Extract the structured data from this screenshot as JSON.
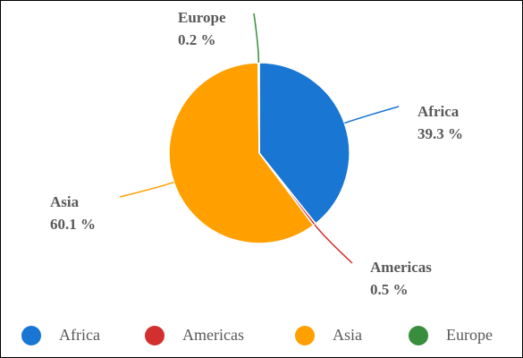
{
  "chart_data": {
    "type": "pie",
    "categories": [
      "Africa",
      "Americas",
      "Asia",
      "Europe"
    ],
    "values": [
      39.3,
      0.5,
      60.1,
      0.2
    ],
    "value_labels": [
      "39.3 %",
      "0.5 %",
      "60.1 %",
      "0.2 %"
    ],
    "colors": [
      "#1976d2",
      "#d32f2f",
      "#ffa000",
      "#388e3c"
    ],
    "legend": "bottom"
  }
}
